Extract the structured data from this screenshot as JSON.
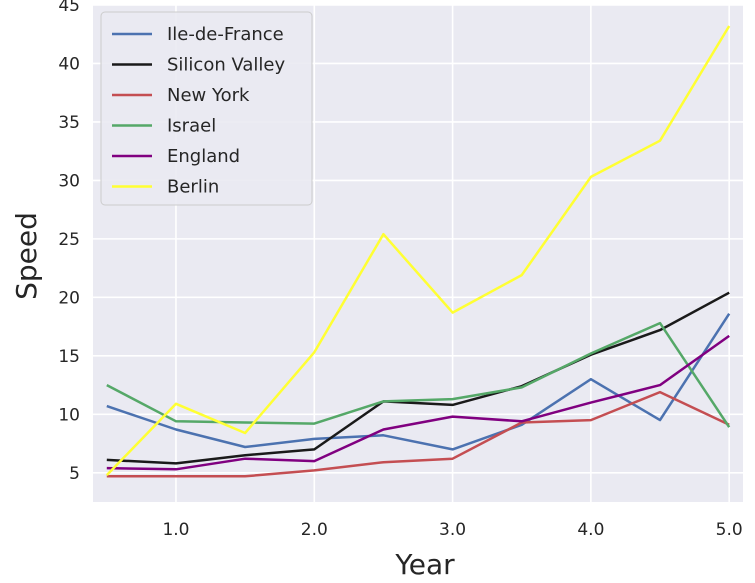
{
  "chart_data": {
    "type": "line",
    "xlabel": "Year",
    "ylabel": "Speed",
    "xlim": [
      0.4,
      5.1
    ],
    "ylim": [
      2.5,
      45
    ],
    "x_ticks": [
      1.0,
      2.0,
      3.0,
      4.0,
      5.0
    ],
    "x_tick_labels": [
      "1.0",
      "2.0",
      "3.0",
      "4.0",
      "5.0"
    ],
    "y_ticks": [
      5,
      10,
      15,
      20,
      25,
      30,
      35,
      40,
      45
    ],
    "y_tick_labels": [
      "5",
      "10",
      "15",
      "20",
      "25",
      "30",
      "35",
      "40",
      "45"
    ],
    "grid": true,
    "legend_position": "top-left",
    "background_color": "#eaeaf2",
    "x": [
      0.5,
      1.0,
      1.5,
      2.0,
      2.5,
      3.0,
      3.5,
      4.0,
      4.5,
      5.0
    ],
    "series": [
      {
        "name": "Ile-de-France",
        "color": "#4c72b0",
        "values": [
          10.7,
          8.7,
          7.2,
          7.9,
          8.2,
          7.0,
          9.1,
          13.0,
          9.5,
          18.6
        ]
      },
      {
        "name": "Silicon Valley",
        "color": "#1a1a1a",
        "values": [
          6.1,
          5.8,
          6.5,
          7.0,
          11.1,
          10.8,
          12.4,
          15.1,
          17.2,
          20.4
        ]
      },
      {
        "name": "New York",
        "color": "#c44e52",
        "values": [
          4.7,
          4.7,
          4.7,
          5.2,
          5.9,
          6.2,
          9.3,
          9.5,
          11.9,
          9.1
        ]
      },
      {
        "name": "Israel",
        "color": "#55a868",
        "values": [
          12.5,
          9.4,
          9.3,
          9.2,
          11.1,
          11.3,
          12.3,
          15.2,
          17.8,
          8.9
        ]
      },
      {
        "name": "England",
        "color": "#800080",
        "values": [
          5.4,
          5.3,
          6.2,
          6.0,
          8.7,
          9.8,
          9.4,
          11.0,
          12.5,
          16.7
        ]
      },
      {
        "name": "Berlin",
        "color": "#ffff33",
        "values": [
          4.8,
          10.9,
          8.4,
          15.3,
          25.4,
          18.7,
          21.9,
          30.3,
          33.4,
          43.2
        ]
      }
    ]
  }
}
